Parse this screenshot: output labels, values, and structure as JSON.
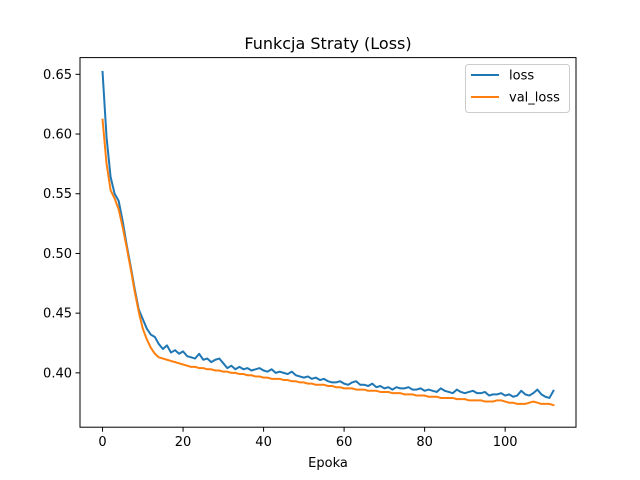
{
  "chart_data": {
    "type": "line",
    "title": "Funkcja Straty (Loss)",
    "xlabel": "Epoka",
    "ylabel": "",
    "xlim": [
      -5.6,
      117.6
    ],
    "ylim": [
      0.3545,
      0.664
    ],
    "xticks": [
      0,
      20,
      40,
      60,
      80,
      100
    ],
    "yticks": [
      0.4,
      0.45,
      0.5,
      0.55,
      0.6,
      0.65
    ],
    "ytick_labels": [
      "0.40",
      "0.45",
      "0.50",
      "0.55",
      "0.60",
      "0.65"
    ],
    "grid": false,
    "legend_position": "top-right",
    "colors": {
      "loss": "#1f77b4",
      "val_loss": "#ff7f0e"
    },
    "series": [
      {
        "name": "loss",
        "x": [
          0,
          1,
          2,
          3,
          4,
          5,
          6,
          7,
          8,
          9,
          10,
          11,
          12,
          13,
          14,
          15,
          16,
          17,
          18,
          19,
          20,
          21,
          22,
          23,
          24,
          25,
          26,
          27,
          28,
          29,
          30,
          31,
          32,
          33,
          34,
          35,
          36,
          37,
          38,
          39,
          40,
          41,
          42,
          43,
          44,
          45,
          46,
          47,
          48,
          49,
          50,
          51,
          52,
          53,
          54,
          55,
          56,
          57,
          58,
          59,
          60,
          61,
          62,
          63,
          64,
          65,
          66,
          67,
          68,
          69,
          70,
          71,
          72,
          73,
          74,
          75,
          76,
          77,
          78,
          79,
          80,
          81,
          82,
          83,
          84,
          85,
          86,
          87,
          88,
          89,
          90,
          91,
          92,
          93,
          94,
          95,
          96,
          97,
          98,
          99,
          100,
          101,
          102,
          103,
          104,
          105,
          106,
          107,
          108,
          109,
          110,
          111,
          112
        ],
        "values": [
          0.652,
          0.597,
          0.564,
          0.55,
          0.544,
          0.527,
          0.507,
          0.489,
          0.47,
          0.453,
          0.445,
          0.437,
          0.432,
          0.43,
          0.424,
          0.42,
          0.423,
          0.417,
          0.419,
          0.416,
          0.418,
          0.414,
          0.413,
          0.412,
          0.416,
          0.411,
          0.412,
          0.409,
          0.411,
          0.412,
          0.408,
          0.404,
          0.406,
          0.403,
          0.405,
          0.403,
          0.404,
          0.402,
          0.403,
          0.404,
          0.402,
          0.401,
          0.403,
          0.4,
          0.401,
          0.4,
          0.399,
          0.401,
          0.398,
          0.397,
          0.396,
          0.397,
          0.395,
          0.396,
          0.394,
          0.395,
          0.393,
          0.392,
          0.392,
          0.393,
          0.391,
          0.39,
          0.392,
          0.393,
          0.39,
          0.39,
          0.389,
          0.391,
          0.388,
          0.389,
          0.387,
          0.388,
          0.386,
          0.388,
          0.387,
          0.387,
          0.388,
          0.386,
          0.386,
          0.387,
          0.385,
          0.386,
          0.385,
          0.384,
          0.387,
          0.385,
          0.384,
          0.383,
          0.386,
          0.384,
          0.383,
          0.384,
          0.385,
          0.383,
          0.383,
          0.384,
          0.381,
          0.382,
          0.382,
          0.383,
          0.381,
          0.382,
          0.38,
          0.381,
          0.385,
          0.382,
          0.381,
          0.383,
          0.386,
          0.382,
          0.38,
          0.379,
          0.385
        ]
      },
      {
        "name": "val_loss",
        "x": [
          0,
          1,
          2,
          3,
          4,
          5,
          6,
          7,
          8,
          9,
          10,
          11,
          12,
          13,
          14,
          15,
          16,
          17,
          18,
          19,
          20,
          21,
          22,
          23,
          24,
          25,
          26,
          27,
          28,
          29,
          30,
          31,
          32,
          33,
          34,
          35,
          36,
          37,
          38,
          39,
          40,
          41,
          42,
          43,
          44,
          45,
          46,
          47,
          48,
          49,
          50,
          51,
          52,
          53,
          54,
          55,
          56,
          57,
          58,
          59,
          60,
          61,
          62,
          63,
          64,
          65,
          66,
          67,
          68,
          69,
          70,
          71,
          72,
          73,
          74,
          75,
          76,
          77,
          78,
          79,
          80,
          81,
          82,
          83,
          84,
          85,
          86,
          87,
          88,
          89,
          90,
          91,
          92,
          93,
          94,
          95,
          96,
          97,
          98,
          99,
          100,
          101,
          102,
          103,
          104,
          105,
          106,
          107,
          108,
          109,
          110,
          111,
          112
        ],
        "values": [
          0.612,
          0.575,
          0.553,
          0.546,
          0.537,
          0.522,
          0.505,
          0.487,
          0.468,
          0.451,
          0.437,
          0.428,
          0.421,
          0.416,
          0.413,
          0.412,
          0.411,
          0.41,
          0.409,
          0.408,
          0.407,
          0.406,
          0.405,
          0.405,
          0.404,
          0.404,
          0.403,
          0.403,
          0.402,
          0.402,
          0.401,
          0.401,
          0.4,
          0.4,
          0.399,
          0.399,
          0.398,
          0.398,
          0.397,
          0.397,
          0.396,
          0.396,
          0.395,
          0.395,
          0.395,
          0.394,
          0.394,
          0.393,
          0.393,
          0.392,
          0.392,
          0.391,
          0.391,
          0.39,
          0.39,
          0.39,
          0.389,
          0.389,
          0.388,
          0.388,
          0.387,
          0.387,
          0.387,
          0.386,
          0.386,
          0.386,
          0.385,
          0.385,
          0.385,
          0.384,
          0.384,
          0.384,
          0.383,
          0.383,
          0.383,
          0.382,
          0.382,
          0.382,
          0.381,
          0.381,
          0.381,
          0.38,
          0.38,
          0.38,
          0.379,
          0.379,
          0.379,
          0.379,
          0.378,
          0.378,
          0.378,
          0.377,
          0.377,
          0.377,
          0.377,
          0.376,
          0.376,
          0.376,
          0.377,
          0.377,
          0.376,
          0.375,
          0.375,
          0.374,
          0.374,
          0.374,
          0.375,
          0.376,
          0.375,
          0.374,
          0.374,
          0.374,
          0.373
        ]
      }
    ]
  }
}
